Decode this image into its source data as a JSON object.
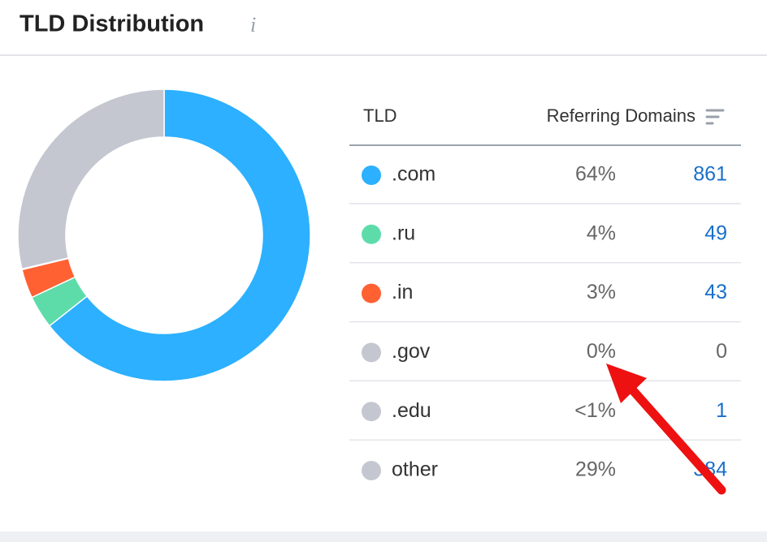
{
  "header": {
    "title": "TLD Distribution",
    "info": "i"
  },
  "table": {
    "columns": [
      "TLD",
      "Referring Domains"
    ],
    "rows": [
      {
        "tld": ".com",
        "share": "64%",
        "domains": 861,
        "color": "#2cb0ff"
      },
      {
        "tld": ".ru",
        "share": "4%",
        "domains": 49,
        "color": "#5ddcaa"
      },
      {
        "tld": ".in",
        "share": "3%",
        "domains": 43,
        "color": "#ff6133"
      },
      {
        "tld": ".gov",
        "share": "0%",
        "domains": 0,
        "color": "#c4c7d0"
      },
      {
        "tld": ".edu",
        "share": "<1%",
        "domains": 1,
        "color": "#c4c7d0"
      },
      {
        "tld": "other",
        "share": "29%",
        "domains": 384,
        "color": "#c4c7d0"
      }
    ]
  }
}
